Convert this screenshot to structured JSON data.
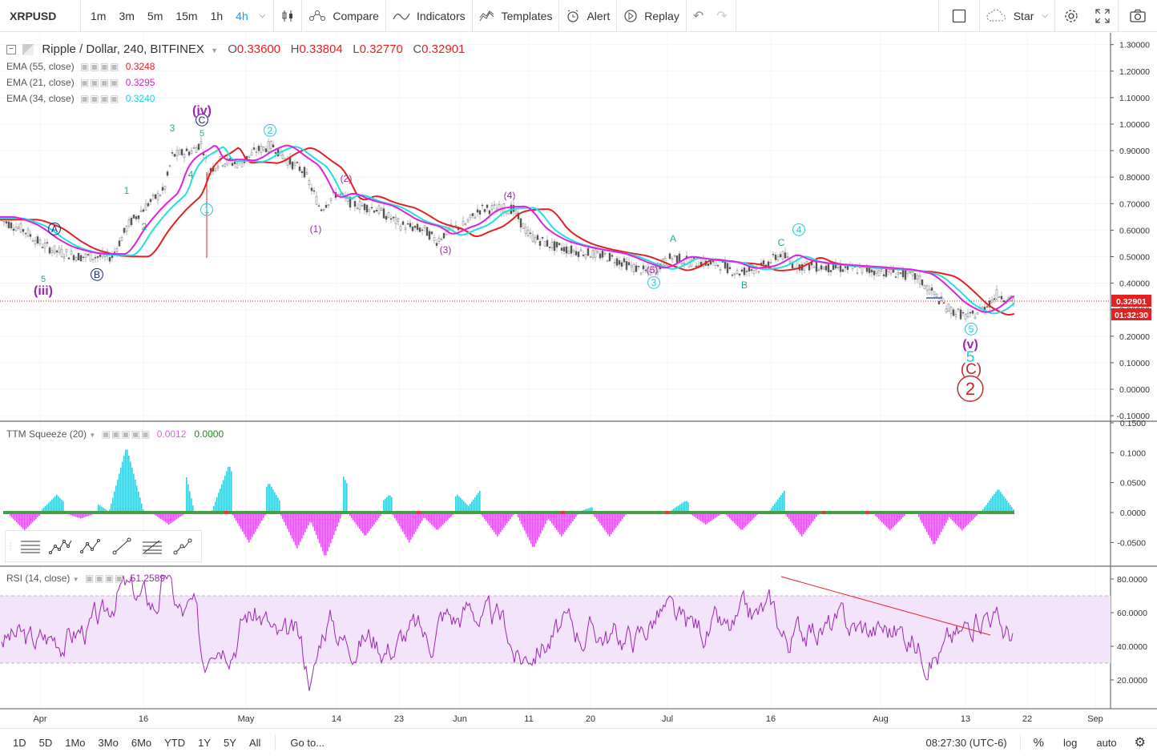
{
  "toolbar": {
    "symbol": "XRPUSD",
    "timeframes": [
      "1m",
      "3m",
      "5m",
      "15m",
      "1h",
      "4h"
    ],
    "active_timeframe": "4h",
    "compare": "Compare",
    "indicators": "Indicators",
    "templates": "Templates",
    "alert": "Alert",
    "replay": "Replay",
    "star": "Star"
  },
  "header": {
    "title": "Ripple / Dollar, 240, BITFINEX",
    "open_label": "O",
    "open": "0.33600",
    "high_label": "H",
    "high": "0.33804",
    "low_label": "L",
    "low": "0.32770",
    "close_label": "C",
    "close": "0.32901"
  },
  "indicators": {
    "ema55": {
      "label": "EMA (55, close)",
      "value": "0.3248",
      "color": "#e52020"
    },
    "ema21": {
      "label": "EMA (21, close)",
      "value": "0.3295",
      "color": "#e020e0"
    },
    "ema34": {
      "label": "EMA (34, close)",
      "value": "0.3240",
      "color": "#20e0e0"
    },
    "ttm": {
      "label": "TTM Squeeze (20)",
      "value1": "0.0012",
      "value2": "0.0000"
    },
    "rsi": {
      "label": "RSI (14, close)",
      "value": "51.2589"
    }
  },
  "price_axis": {
    "ticks": [
      "1.30000",
      "1.20000",
      "1.10000",
      "1.00000",
      "0.90000",
      "0.80000",
      "0.70000",
      "0.60000",
      "0.50000",
      "0.40000",
      "0.30000",
      "0.20000",
      "0.10000",
      "0.00000",
      "-0.10000"
    ],
    "last_price": "0.32901",
    "countdown": "01:32:30"
  },
  "ttm_axis": {
    "ticks": [
      "0.1500",
      "0.1000",
      "0.0500",
      "0.0000",
      "-0.0500"
    ]
  },
  "rsi_axis": {
    "ticks": [
      "80.0000",
      "60.0000",
      "40.0000",
      "20.0000"
    ]
  },
  "time_axis": {
    "ticks": [
      "Apr",
      "16",
      "May",
      "14",
      "23",
      "Jun",
      "11",
      "20",
      "Jul",
      "16",
      "Aug",
      "13",
      "22",
      "Sep"
    ]
  },
  "wave_labels": [
    "(iii)",
    "5",
    "A",
    "B",
    "1",
    "2",
    "3",
    "4",
    "5",
    "C",
    "(iv)",
    "1",
    "2",
    "(1)",
    "(2)",
    "(3)",
    "(4)",
    "(5)",
    "A",
    "3",
    "B",
    "C",
    "4",
    "5",
    "(v)",
    "5",
    "(C)",
    "2"
  ],
  "bottom": {
    "ranges": [
      "1D",
      "5D",
      "1Mo",
      "3Mo",
      "6Mo",
      "YTD",
      "1Y",
      "5Y",
      "All"
    ],
    "goto": "Go to...",
    "clock": "08:27:30 (UTC-6)",
    "percent": "%",
    "log": "log",
    "auto": "auto"
  },
  "drawing_tools": [
    "horizontal-lines-icon",
    "elliott-impulse-icon",
    "elliott-correction-icon",
    "trend-line-icon",
    "fib-retracement-icon",
    "path-icon"
  ]
}
